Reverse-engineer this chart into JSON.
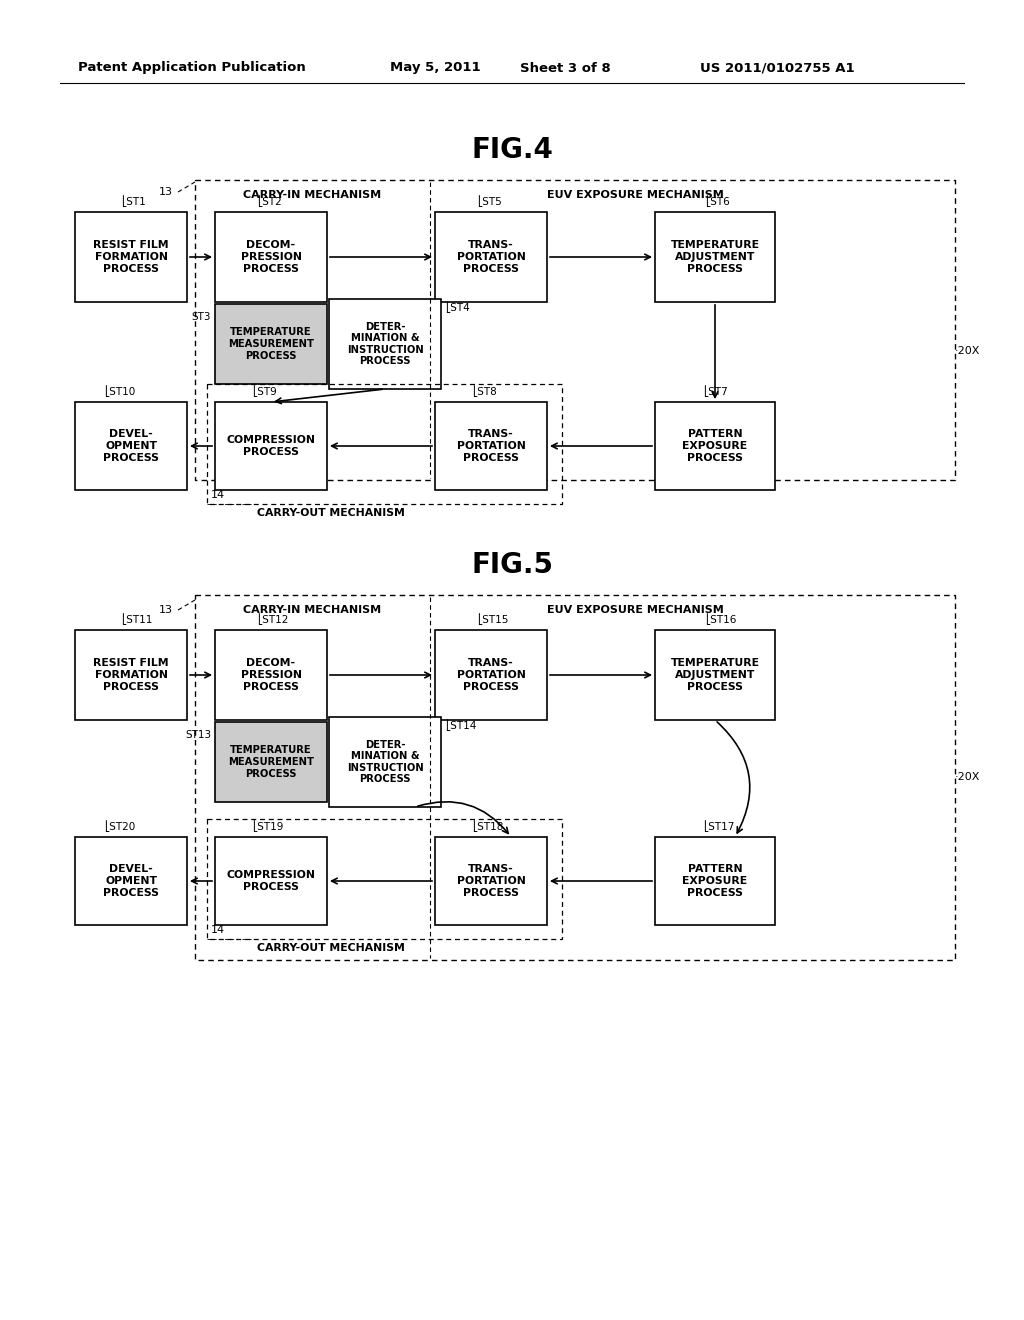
{
  "bg_color": "#ffffff",
  "header_text": "Patent Application Publication",
  "header_date": "May 5, 2011",
  "header_sheet": "Sheet 3 of 8",
  "header_patent": "US 2011/0102755 A1",
  "fig4_title": "FIG.4",
  "fig5_title": "FIG.5"
}
